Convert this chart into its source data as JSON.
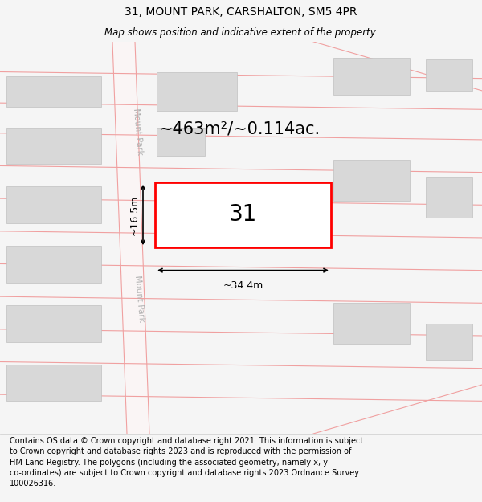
{
  "title": "31, MOUNT PARK, CARSHALTON, SM5 4PR",
  "subtitle": "Map shows position and indicative extent of the property.",
  "footer": "Contains OS data © Crown copyright and database right 2021. This information is subject\nto Crown copyright and database rights 2023 and is reproduced with the permission of\nHM Land Registry. The polygons (including the associated geometry, namely x, y\nco-ordinates) are subject to Crown copyright and database rights 2023 Ordnance Survey\n100026316.",
  "bg_color": "#f5f5f5",
  "map_bg": "#ffffff",
  "road_color": "#f0a0a0",
  "building_color": "#d8d8d8",
  "building_edge": "#c0c0c0",
  "highlight_color": "#ff0000",
  "highlight_fill": "#ffffff",
  "street_label_color": "#b0b0b0",
  "area_text": "~463m²/~0.114ac.",
  "number_text": "31",
  "dim_width": "~34.4m",
  "dim_height": "~16.5m",
  "title_fontsize": 10,
  "subtitle_fontsize": 8.5,
  "footer_fontsize": 7,
  "area_fontsize": 15,
  "number_fontsize": 20,
  "dim_fontsize": 9
}
